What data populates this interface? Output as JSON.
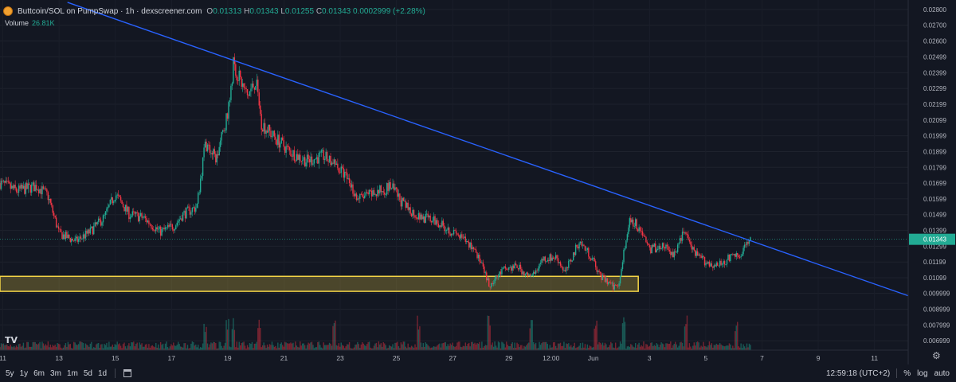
{
  "header": {
    "title": "Buttcoin/SOL on PumpSwap · 1h · dexscreener.com",
    "ohlc": {
      "o_label": "O",
      "o": "0.01313",
      "h_label": "H",
      "h": "0.01343",
      "l_label": "L",
      "l": "0.01255",
      "c_label": "C",
      "c": "0.01343",
      "change": "0.0002999 (+2.28%)"
    },
    "volume_label": "Volume",
    "volume_value": "26.81K"
  },
  "bottom_bar": {
    "timeframes": [
      "5y",
      "1y",
      "6m",
      "3m",
      "1m",
      "5d",
      "1d"
    ],
    "time": "12:59:18 (UTC+2)",
    "percent": "%",
    "log": "log",
    "auto": "auto"
  },
  "logo_text": "TV",
  "colors": {
    "bg": "#131722",
    "up": "#22ab94",
    "down": "#f23645",
    "trendline": "#2962ff",
    "zone_border": "#f5d547",
    "zone_fill": "rgba(245,213,71,0.25)",
    "price_tag": "#22ab94"
  },
  "chart_data": {
    "type": "candlestick",
    "y_axis_ticks": [
      "0.02800",
      "0.02700",
      "0.02600",
      "0.02499",
      "0.02399",
      "0.02299",
      "0.02199",
      "0.02099",
      "0.01999",
      "0.01899",
      "0.01799",
      "0.01699",
      "0.01599",
      "0.01499",
      "0.01399",
      "0.01299",
      "0.01199",
      "0.01099",
      "0.009999",
      "0.008999",
      "0.007999",
      "0.006999"
    ],
    "ylim": [
      0.0064,
      0.0286
    ],
    "x_axis_labels": [
      "11",
      "13",
      "15",
      "17",
      "19",
      "21",
      "23",
      "25",
      "27",
      "29",
      "12:00",
      "Jun",
      "3",
      "5",
      "7",
      "9",
      "11"
    ],
    "x_label_days": [
      11,
      13,
      15,
      17,
      19,
      21,
      23,
      25,
      27,
      29,
      30.5,
      32,
      34,
      36,
      38,
      40,
      42
    ],
    "x_range_days": [
      10.9,
      43.2
    ],
    "last_day": 37.6,
    "price_path": [
      [
        10.9,
        0.017
      ],
      [
        11.5,
        0.0165
      ],
      [
        12.2,
        0.0168
      ],
      [
        12.6,
        0.0162
      ],
      [
        13.0,
        0.0138
      ],
      [
        13.6,
        0.0133
      ],
      [
        14.1,
        0.0139
      ],
      [
        14.6,
        0.0148
      ],
      [
        15.0,
        0.0163
      ],
      [
        15.5,
        0.015
      ],
      [
        16.0,
        0.0148
      ],
      [
        16.6,
        0.0139
      ],
      [
        17.1,
        0.0143
      ],
      [
        17.4,
        0.015
      ],
      [
        17.9,
        0.0155
      ],
      [
        18.2,
        0.0195
      ],
      [
        18.6,
        0.0185
      ],
      [
        19.0,
        0.0215
      ],
      [
        19.2,
        0.0245
      ],
      [
        19.7,
        0.0225
      ],
      [
        20.0,
        0.0235
      ],
      [
        20.2,
        0.0208
      ],
      [
        20.6,
        0.02
      ],
      [
        21.2,
        0.019
      ],
      [
        21.8,
        0.0184
      ],
      [
        22.4,
        0.0187
      ],
      [
        22.9,
        0.018
      ],
      [
        23.3,
        0.0172
      ],
      [
        23.6,
        0.016
      ],
      [
        24.2,
        0.0163
      ],
      [
        24.8,
        0.0168
      ],
      [
        25.3,
        0.0155
      ],
      [
        25.8,
        0.0149
      ],
      [
        26.5,
        0.0145
      ],
      [
        27.3,
        0.0135
      ],
      [
        27.8,
        0.0128
      ],
      [
        28.3,
        0.0105
      ],
      [
        28.8,
        0.0115
      ],
      [
        29.3,
        0.0117
      ],
      [
        29.8,
        0.0109
      ],
      [
        30.2,
        0.0122
      ],
      [
        30.7,
        0.0123
      ],
      [
        31.0,
        0.0113
      ],
      [
        31.5,
        0.0133
      ],
      [
        31.9,
        0.0124
      ],
      [
        32.3,
        0.011
      ],
      [
        32.7,
        0.0104
      ],
      [
        32.9,
        0.0106
      ],
      [
        33.1,
        0.0128
      ],
      [
        33.3,
        0.0148
      ],
      [
        33.7,
        0.014
      ],
      [
        34.0,
        0.0128
      ],
      [
        34.5,
        0.013
      ],
      [
        34.9,
        0.0124
      ],
      [
        35.2,
        0.014
      ],
      [
        35.6,
        0.0125
      ],
      [
        36.0,
        0.012
      ],
      [
        36.4,
        0.0117
      ],
      [
        36.8,
        0.0122
      ],
      [
        37.2,
        0.0125
      ],
      [
        37.6,
        0.0134
      ]
    ],
    "trendline": {
      "x0": 13.3,
      "y0": 0.02845,
      "x1": 43.2,
      "y1": 0.00985
    },
    "support_zone": {
      "x0": 10.9,
      "x1": 33.6,
      "y_low": 0.01013,
      "y_high": 0.01108
    },
    "volume_spike_days": [
      18.2,
      19.0,
      19.2,
      20.1,
      22.8,
      25.8,
      28.3,
      29.8,
      32.1,
      33.1,
      35.3,
      37.1
    ],
    "last_price": "0.01343"
  }
}
